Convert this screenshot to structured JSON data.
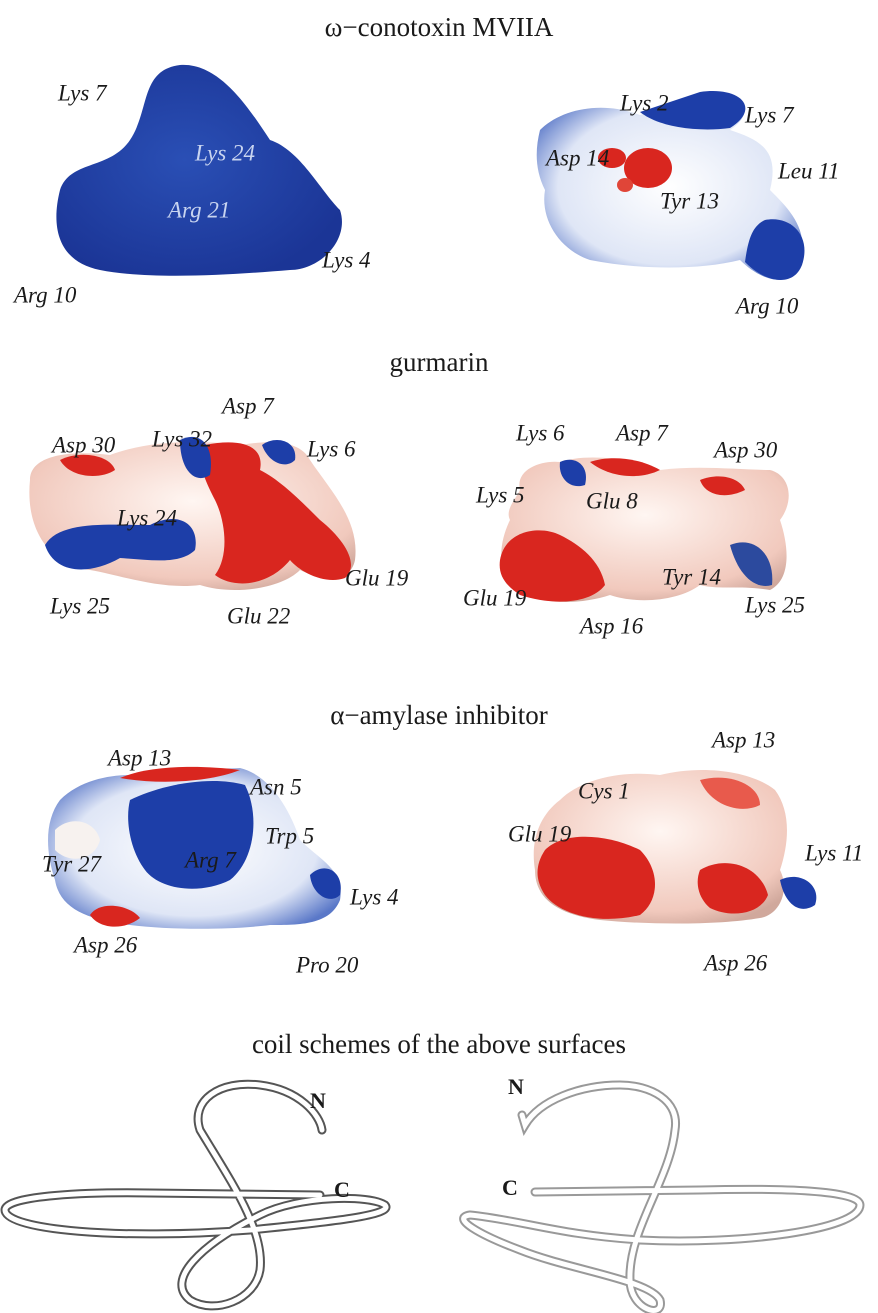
{
  "panels": [
    {
      "title": "ω−conotoxin MVIIA",
      "left_labels": [
        "Lys 7",
        "Lys 24",
        "Arg 21",
        "Lys 4",
        "Arg 10"
      ],
      "right_labels": [
        "Lys 2",
        "Lys 7",
        "Asp 14",
        "Leu 11",
        "Tyr 13",
        "Arg 10"
      ]
    },
    {
      "title": "gurmarin",
      "left_labels": [
        "Asp 7",
        "Asp 30",
        "Lys 32",
        "Lys 6",
        "Lys 24",
        "Glu 19",
        "Lys 25",
        "Glu 22"
      ],
      "right_labels": [
        "Lys 6",
        "Asp 7",
        "Asp 30",
        "Lys 5",
        "Glu 8",
        "Tyr 14",
        "Glu 19",
        "Lys 25",
        "Asp 16"
      ]
    },
    {
      "title": "α−amylase inhibitor",
      "left_labels": [
        "Asp 13",
        "Asn 5",
        "Trp 5",
        "Tyr 27",
        "Arg 7",
        "Lys 4",
        "Asp 26",
        "Pro 20"
      ],
      "right_labels": [
        "Asp 13",
        "Cys 1",
        "Glu 19",
        "Lys 11",
        "Asp 26"
      ]
    }
  ],
  "coil": {
    "title": "coil schemes of the above surfaces",
    "left_labels": [
      "N",
      "C"
    ],
    "right_labels": [
      "N",
      "C"
    ]
  }
}
